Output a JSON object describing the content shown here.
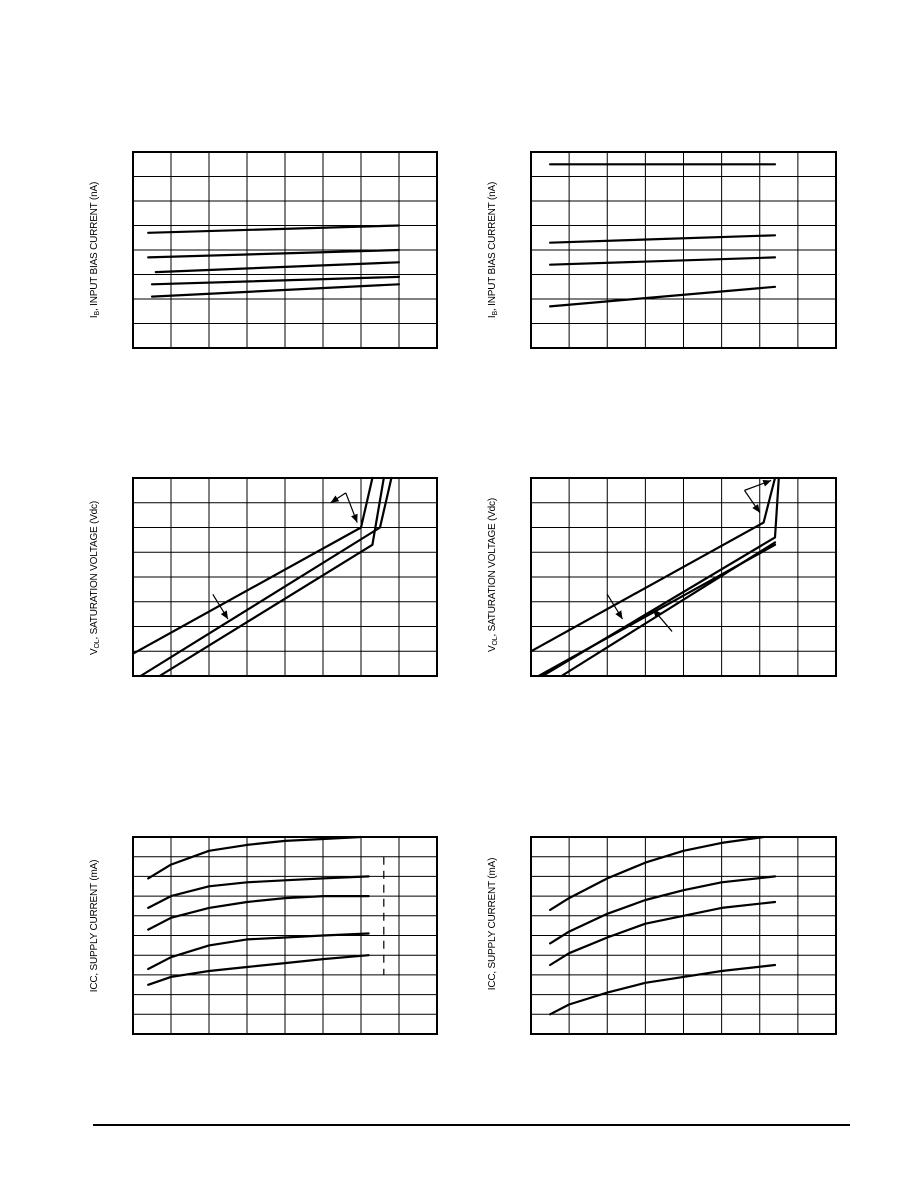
{
  "page": {
    "background": "#ffffff",
    "line_color": "#000000"
  },
  "chart_data": [
    {
      "id": "ib-left",
      "type": "line",
      "ylabel": {
        "prefix": "I",
        "sub": "B",
        "suffix": ", INPUT BIAS CURRENT (nA)"
      },
      "grid": true,
      "grid_divisions": [
        8,
        8
      ],
      "xlim": [
        0,
        8
      ],
      "ylim": [
        0,
        8
      ],
      "series": [
        {
          "x": [
            0.4,
            7.0
          ],
          "y": [
            4.7,
            5.0
          ]
        },
        {
          "x": [
            0.4,
            7.0
          ],
          "y": [
            3.7,
            4.0
          ]
        },
        {
          "x": [
            0.6,
            7.0
          ],
          "y": [
            3.1,
            3.5
          ]
        },
        {
          "x": [
            0.5,
            7.0
          ],
          "y": [
            2.6,
            2.9
          ]
        },
        {
          "x": [
            0.5,
            7.0
          ],
          "y": [
            2.1,
            2.6
          ]
        }
      ]
    },
    {
      "id": "ib-right",
      "type": "line",
      "ylabel": {
        "prefix": "I",
        "sub": "B",
        "suffix": ", INPUT BIAS CURRENT (nA)"
      },
      "grid": true,
      "grid_divisions": [
        8,
        8
      ],
      "xlim": [
        0,
        8
      ],
      "ylim": [
        0,
        8
      ],
      "series": [
        {
          "x": [
            0.5,
            6.4
          ],
          "y": [
            7.5,
            7.5
          ]
        },
        {
          "x": [
            0.5,
            6.4
          ],
          "y": [
            4.3,
            4.6
          ]
        },
        {
          "x": [
            0.5,
            6.4
          ],
          "y": [
            3.4,
            3.7
          ]
        },
        {
          "x": [
            0.5,
            6.4
          ],
          "y": [
            1.7,
            2.5
          ]
        }
      ]
    },
    {
      "id": "vol-left",
      "type": "line",
      "ylabel": {
        "prefix": "V",
        "sub": "OL",
        "suffix": ", SATURATION VOLTAGE (Vdc)"
      },
      "grid": true,
      "grid_divisions": [
        8,
        8
      ],
      "xlim": [
        0,
        8
      ],
      "ylim": [
        0,
        8
      ],
      "series": [
        {
          "x": [
            0.0,
            6.0,
            6.3
          ],
          "y": [
            0.9,
            6.0,
            8.0
          ]
        },
        {
          "x": [
            0.2,
            6.5,
            6.8
          ],
          "y": [
            0.0,
            6.0,
            8.0
          ]
        },
        {
          "x": [
            0.7,
            6.3,
            6.6
          ],
          "y": [
            0.0,
            5.3,
            8.0
          ]
        }
      ],
      "arrows": [
        {
          "from": [
            5.6,
            7.4
          ],
          "to": [
            5.2,
            7.0
          ]
        },
        {
          "from": [
            5.6,
            7.4
          ],
          "to": [
            5.9,
            6.2
          ]
        },
        {
          "from": [
            2.1,
            3.3
          ],
          "to": [
            2.5,
            2.3
          ]
        }
      ]
    },
    {
      "id": "vol-right",
      "type": "line",
      "ylabel": {
        "prefix": "V",
        "sub": "OL",
        "suffix": ", SATURATION VOLTAGE (Vdc)"
      },
      "grid": true,
      "grid_divisions": [
        8,
        8
      ],
      "xlim": [
        0,
        8
      ],
      "ylim": [
        0,
        8
      ],
      "series": [
        {
          "x": [
            0.0,
            6.1,
            6.4
          ],
          "y": [
            1.0,
            6.2,
            8.0
          ]
        },
        {
          "x": [
            0.3,
            6.4,
            6.5
          ],
          "y": [
            0.0,
            5.6,
            8.0
          ]
        },
        {
          "x": [
            0.2,
            6.4
          ],
          "y": [
            0.0,
            5.3
          ]
        },
        {
          "x": [
            0.8,
            6.4
          ],
          "y": [
            0.0,
            5.4
          ]
        }
      ],
      "arrows": [
        {
          "from": [
            5.6,
            7.5
          ],
          "to": [
            6.3,
            7.9
          ]
        },
        {
          "from": [
            5.6,
            7.5
          ],
          "to": [
            6.0,
            6.6
          ]
        },
        {
          "from": [
            2.0,
            3.3
          ],
          "to": [
            2.4,
            2.3
          ]
        },
        {
          "from": [
            3.7,
            1.8
          ],
          "to": [
            3.2,
            2.7
          ]
        }
      ]
    },
    {
      "id": "icc-left",
      "type": "line",
      "ylabel": {
        "prefix": "ICC, SUPPLY CURRENT (mA)",
        "sub": "",
        "suffix": ""
      },
      "grid": true,
      "grid_divisions": [
        8,
        10
      ],
      "xlim": [
        0,
        8
      ],
      "ylim": [
        0,
        10
      ],
      "series": [
        {
          "x": [
            0.4,
            1.0,
            2.0,
            3.0,
            4.0,
            5.0,
            6.0
          ],
          "y": [
            7.9,
            8.6,
            9.3,
            9.6,
            9.8,
            9.9,
            10.0
          ]
        },
        {
          "x": [
            0.4,
            1.0,
            2.0,
            3.0,
            4.0,
            5.0,
            6.2
          ],
          "y": [
            6.4,
            7.0,
            7.5,
            7.7,
            7.8,
            7.9,
            8.0
          ]
        },
        {
          "x": [
            0.4,
            1.0,
            2.0,
            3.0,
            4.0,
            5.0,
            6.2
          ],
          "y": [
            5.3,
            5.9,
            6.4,
            6.7,
            6.9,
            7.0,
            7.0
          ]
        },
        {
          "x": [
            0.4,
            1.0,
            2.0,
            3.0,
            4.0,
            5.0,
            6.2
          ],
          "y": [
            3.3,
            3.9,
            4.5,
            4.8,
            4.9,
            5.0,
            5.1
          ]
        },
        {
          "x": [
            0.4,
            1.0,
            2.0,
            3.0,
            4.0,
            5.0,
            6.2
          ],
          "y": [
            2.5,
            2.9,
            3.2,
            3.4,
            3.6,
            3.8,
            4.0
          ]
        }
      ],
      "dashes": [
        {
          "x": 6.6,
          "y0": 9.0,
          "y1": 3.0
        }
      ]
    },
    {
      "id": "icc-right",
      "type": "line",
      "ylabel": {
        "prefix": "ICC, SUPPLY CURRENT (mA)",
        "sub": "",
        "suffix": ""
      },
      "grid": true,
      "grid_divisions": [
        8,
        10
      ],
      "xlim": [
        0,
        8
      ],
      "ylim": [
        0,
        10
      ],
      "series": [
        {
          "x": [
            0.5,
            1.0,
            2.0,
            3.0,
            4.0,
            5.0,
            6.1
          ],
          "y": [
            6.3,
            6.9,
            7.9,
            8.7,
            9.3,
            9.7,
            10.0
          ]
        },
        {
          "x": [
            0.5,
            1.0,
            2.0,
            3.0,
            4.0,
            5.0,
            6.4
          ],
          "y": [
            4.6,
            5.2,
            6.1,
            6.8,
            7.3,
            7.7,
            8.0
          ]
        },
        {
          "x": [
            0.5,
            1.0,
            2.0,
            3.0,
            4.0,
            5.0,
            6.4
          ],
          "y": [
            3.5,
            4.1,
            4.9,
            5.6,
            6.0,
            6.4,
            6.7
          ]
        },
        {
          "x": [
            0.5,
            1.0,
            2.0,
            3.0,
            4.0,
            5.0,
            6.4
          ],
          "y": [
            1.0,
            1.5,
            2.1,
            2.6,
            2.9,
            3.2,
            3.5
          ]
        }
      ]
    }
  ]
}
